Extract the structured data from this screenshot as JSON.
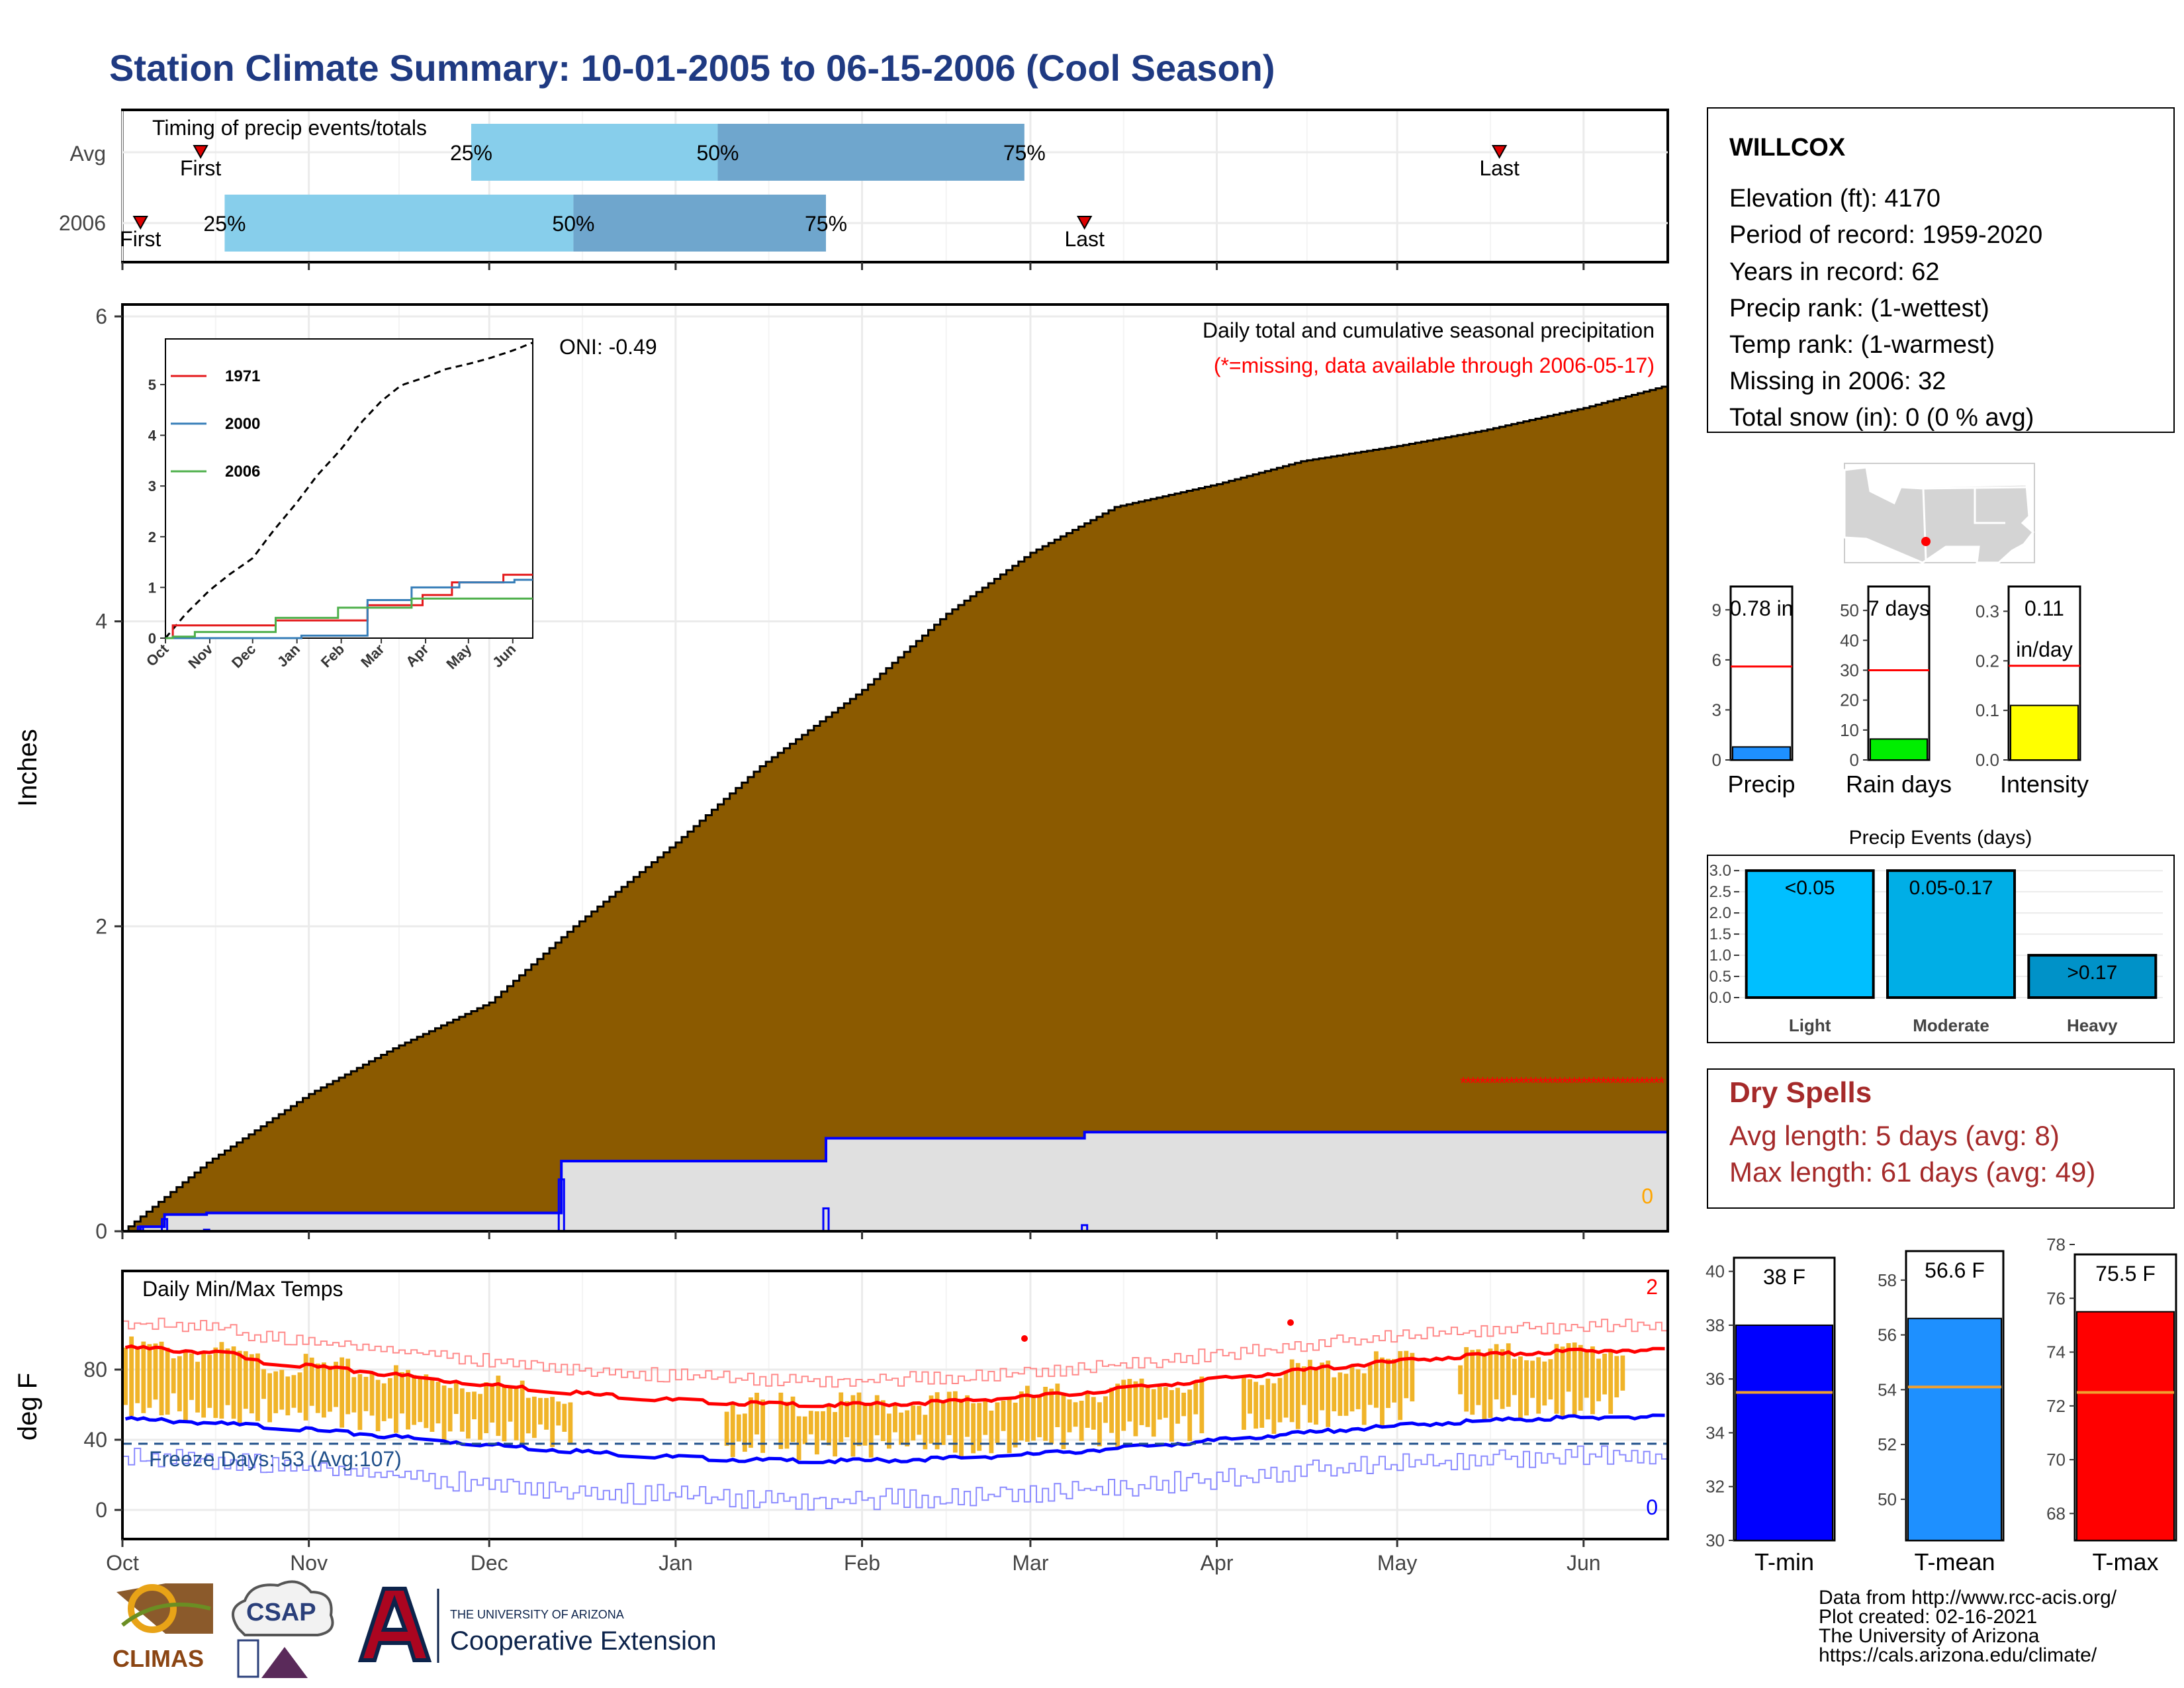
{
  "title": "Station Climate Summary: 10-01-2005 to 06-15-2006 (Cool Season)",
  "colors": {
    "title": "#1f3a82",
    "precip_fill": "#8b5a00",
    "light_blue": "#87ceeb",
    "mid_blue": "#6fa6cd",
    "dry_red": "#a52a2a",
    "temp_bar": "#f0b429",
    "missing": "#ff0000"
  },
  "timing": {
    "label": "Timing of precip events/totals",
    "rows": [
      {
        "name": "Avg",
        "first_label": "First",
        "last_label": "Last",
        "first": "2005-10-14",
        "p25": "2005-11-28",
        "p50": "2006-01-08",
        "p75": "2006-02-28",
        "last": "2006-05-18"
      },
      {
        "name": "2006",
        "first_label": "First",
        "last_label": "Last",
        "first": "2005-10-04",
        "p25": "2005-10-18",
        "p50": "2005-12-15",
        "p75": "2006-01-26",
        "last": "2006-03-10"
      }
    ],
    "pct_labels": [
      "25%",
      "50%",
      "75%"
    ]
  },
  "station": {
    "name": "WILLCOX",
    "lines": [
      "Elevation (ft): 4170",
      "Period of record: 1959-2020",
      "Years in record: 62",
      "Precip rank:  (1-wettest)",
      "Temp rank:  (1-warmest)",
      "Missing in 2006: 32",
      "Total snow (in): 0 (0 % avg)"
    ]
  },
  "precip_main": {
    "ylabel": "Inches",
    "note1": "Daily total and cumulative seasonal precipitation",
    "note2": "(*=missing, data available through 2006-05-17)",
    "oni": "ONI: -0.49",
    "zero_label": "0",
    "yticks": [
      "0",
      "2",
      "4",
      "6"
    ]
  },
  "inset": {
    "legend": [
      "1971",
      "2000",
      "2006"
    ],
    "colors": [
      "#e41a1c",
      "#377eb8",
      "#4daf4a"
    ],
    "xticks": [
      "Oct",
      "Nov",
      "Dec",
      "Jan",
      "Feb",
      "Mar",
      "Apr",
      "May",
      "Jun"
    ],
    "yticks": [
      "0",
      "1",
      "2",
      "3",
      "4",
      "5"
    ]
  },
  "mini_bars": [
    {
      "name": "Precip",
      "label": "0.78 in",
      "label2": "",
      "value": 0.78,
      "avg": 5.6,
      "ymax": 10.4,
      "ticks": [
        "0",
        "3",
        "6",
        "9"
      ],
      "tickvals": [
        0,
        3,
        6,
        9
      ],
      "color": "#1e90ff"
    },
    {
      "name": "Rain days",
      "label": "7 days",
      "label2": "",
      "value": 7,
      "avg": 30,
      "ymax": 58,
      "ticks": [
        "0",
        "10",
        "20",
        "30",
        "40",
        "50"
      ],
      "tickvals": [
        0,
        10,
        20,
        30,
        40,
        50
      ],
      "color": "#00ee00"
    },
    {
      "name": "Intensity",
      "label": "0.11",
      "label2": "in/day",
      "value": 0.11,
      "avg": 0.19,
      "ymax": 0.35,
      "ticks": [
        "0.0",
        "0.1",
        "0.2",
        "0.3"
      ],
      "tickvals": [
        0,
        0.1,
        0.2,
        0.3
      ],
      "color": "#ffff00"
    }
  ],
  "events": {
    "title": "Precip Events (days)",
    "categories": [
      "Light",
      "Moderate",
      "Heavy"
    ],
    "bar_labels": [
      "<0.05",
      "0.05-0.17",
      ">0.17"
    ],
    "values": [
      3,
      3,
      1
    ],
    "colors": [
      "#00bfff",
      "#00aee6",
      "#0092c8"
    ],
    "yticks": [
      "0.0",
      "0.5",
      "1.0",
      "1.5",
      "2.0",
      "2.5",
      "3.0"
    ]
  },
  "dry": {
    "title": "Dry Spells",
    "line1": "Avg length: 5 days (avg: 8)",
    "line2": "Max length: 61 days (avg: 49)"
  },
  "temp": {
    "title": "Daily Min/Max Temps",
    "ylabel": "deg F",
    "freeze": "Freeze Days: 53 (Avg:107)",
    "count_top": "2",
    "count_bottom": "0",
    "yticks": [
      "0",
      "40",
      "80"
    ],
    "months": [
      "Oct",
      "Nov",
      "Dec",
      "Jan",
      "Feb",
      "Mar",
      "Apr",
      "May",
      "Jun"
    ]
  },
  "temp_bars": [
    {
      "name": "T-min",
      "label": "38 F",
      "value": 38,
      "avg": 35.5,
      "ymin": 30,
      "ymax": 41,
      "ticks": [
        "30",
        "32",
        "34",
        "36",
        "38",
        "40"
      ],
      "tickvals": [
        30,
        32,
        34,
        36,
        38,
        40
      ],
      "color": "#0000ff"
    },
    {
      "name": "T-mean",
      "label": "56.6 F",
      "value": 56.6,
      "avg": 54.1,
      "ymin": 48.5,
      "ymax": 59.3,
      "ticks": [
        "50",
        "52",
        "54",
        "56",
        "58"
      ],
      "tickvals": [
        50,
        52,
        54,
        56,
        58
      ],
      "color": "#1e90ff"
    },
    {
      "name": "T-max",
      "label": "75.5 F",
      "value": 75.5,
      "avg": 72.5,
      "ymin": 67,
      "ymax": 78,
      "ticks": [
        "68",
        "70",
        "72",
        "74",
        "76",
        "78"
      ],
      "tickvals": [
        68,
        70,
        72,
        74,
        76,
        78
      ],
      "color": "#ff0000"
    }
  ],
  "credits": [
    "Data from http://www.rcc-acis.org/",
    "Plot created: 02-16-2021",
    "The University of Arizona",
    "https://cals.arizona.edu/climate/"
  ],
  "logos": {
    "climas": "CLIMAS",
    "csap": "CSAP",
    "ua_small": "THE UNIVERSITY OF ARIZONA",
    "ua_big": "Cooperative Extension"
  },
  "chart_data": {
    "type": "area",
    "title": "Daily total and cumulative seasonal precipitation",
    "ylabel": "Inches",
    "x": [
      "2005-10-01",
      "2005-10-15",
      "2005-11-01",
      "2005-11-15",
      "2005-12-01",
      "2005-12-15",
      "2006-01-01",
      "2006-01-15",
      "2006-02-01",
      "2006-02-15",
      "2006-03-01",
      "2006-03-15",
      "2006-04-01",
      "2006-04-15",
      "2006-05-01",
      "2006-05-15",
      "2006-06-01",
      "2006-06-15"
    ],
    "series": [
      {
        "name": "Avg",
        "values": [
          0.0,
          0.45,
          0.9,
          1.2,
          1.5,
          2.0,
          2.55,
          3.05,
          3.55,
          4.05,
          4.45,
          4.75,
          4.9,
          5.05,
          5.15,
          5.25,
          5.4,
          5.55
        ]
      }
    ],
    "ylim": [
      0,
      6
    ],
    "daily_2006": [
      {
        "date": "2005-10-04",
        "value": 0.03
      },
      {
        "date": "2005-10-08",
        "value": 0.08
      },
      {
        "date": "2005-10-15",
        "value": 0.01
      },
      {
        "date": "2005-12-13",
        "value": 0.34
      },
      {
        "date": "2006-01-26",
        "value": 0.15
      },
      {
        "date": "2006-03-10",
        "value": 0.04
      }
    ],
    "cumulative_2006_final": 0.78
  }
}
